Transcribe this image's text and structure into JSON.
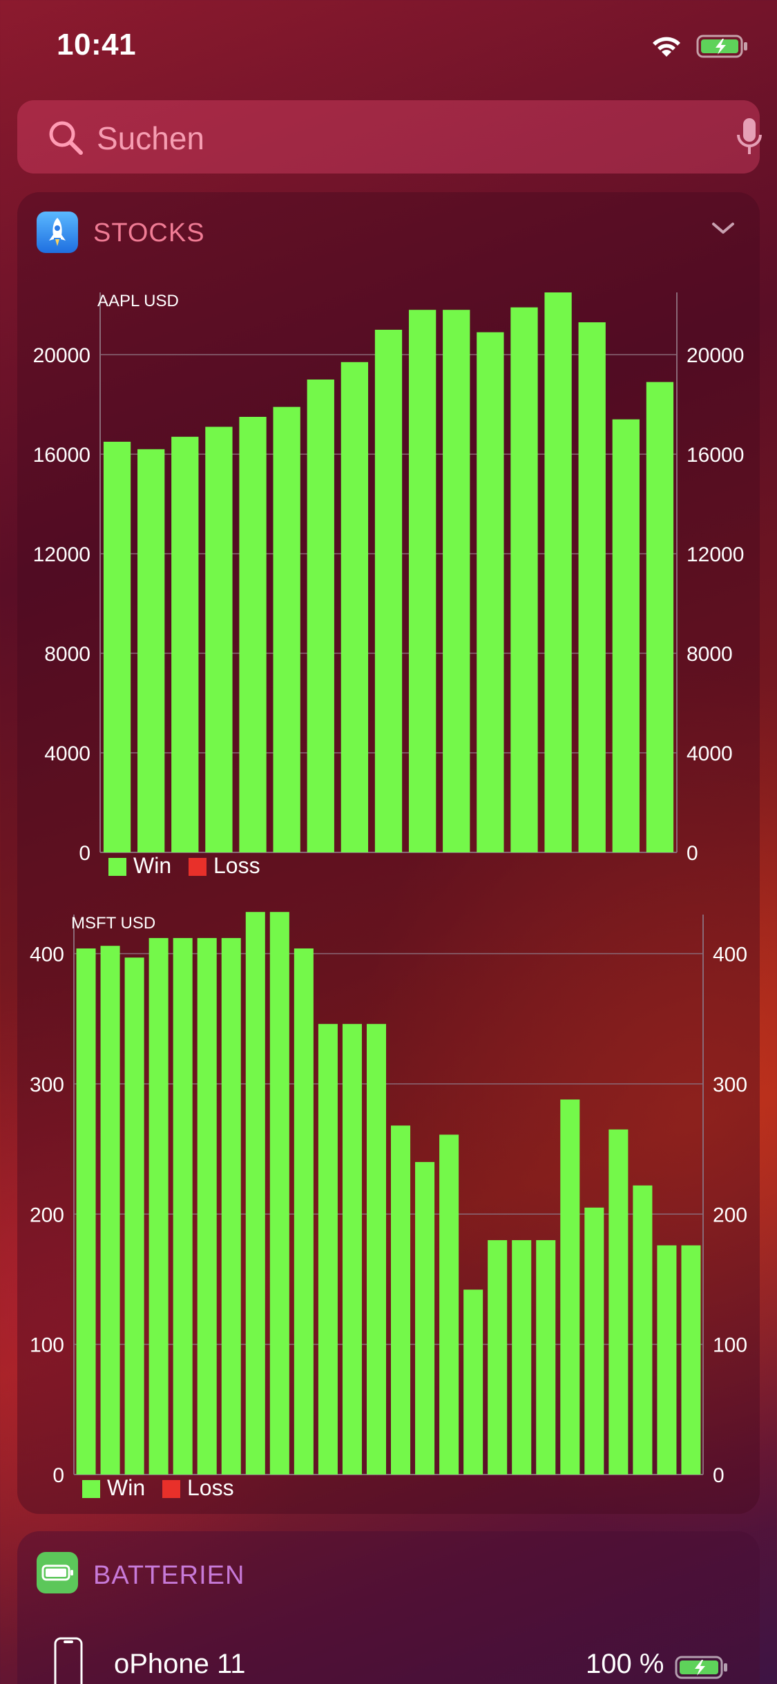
{
  "status": {
    "time": "10:41"
  },
  "search": {
    "placeholder": "Suchen",
    "icon": "search-icon",
    "mic_icon": "microphone-icon"
  },
  "stocks_widget": {
    "title": "STOCKS",
    "icon": "rocket-app-icon",
    "chevron": "chevron-down-icon"
  },
  "colors": {
    "win": "#74f84a",
    "loss": "#e8302a",
    "grid": "#8a6a78",
    "axis_text": "#ffffff"
  },
  "chart_data": [
    {
      "type": "bar",
      "title": "AAPL USD",
      "legend": [
        "Win",
        "Loss"
      ],
      "legend_position": "bottom-left",
      "grid": true,
      "ylim": [
        0,
        22500
      ],
      "yticks": [
        0,
        4000,
        8000,
        12000,
        16000,
        20000
      ],
      "y_axis": "left-and-right",
      "values": [
        16500,
        16200,
        16700,
        17100,
        17500,
        17900,
        19000,
        19700,
        21000,
        21800,
        21800,
        20900,
        21900,
        22500,
        21300,
        17400,
        18900
      ]
    },
    {
      "type": "bar",
      "title": "MSFT USD",
      "legend": [
        "Win",
        "Loss"
      ],
      "legend_position": "bottom-left",
      "grid": true,
      "ylim": [
        0,
        430
      ],
      "yticks": [
        0,
        100,
        200,
        300,
        400
      ],
      "y_axis": "left-and-right",
      "values": [
        404,
        406,
        397,
        412,
        412,
        412,
        412,
        432,
        432,
        404,
        346,
        346,
        346,
        268,
        240,
        261,
        142,
        180,
        180,
        180,
        288,
        205,
        265,
        222,
        176,
        176
      ]
    }
  ],
  "battery_widget": {
    "title": "BATTERIEN",
    "icon": "battery-app-icon",
    "device_name": "oPhone 11",
    "device_percent": "100 %"
  }
}
